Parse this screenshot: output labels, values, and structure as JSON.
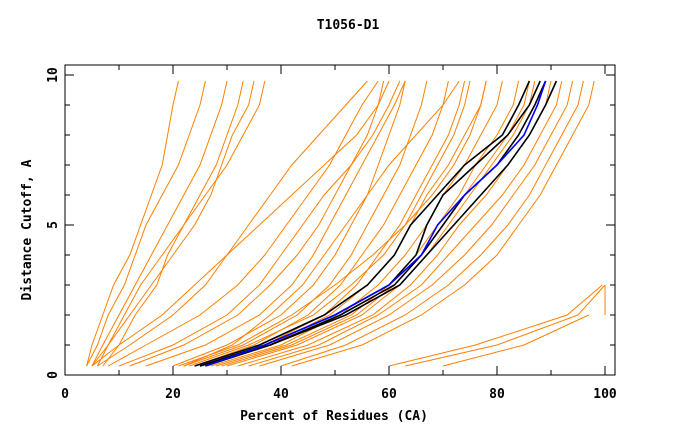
{
  "chart_data": {
    "type": "line",
    "title": "T1056-D1",
    "xlabel": "Percent of Residues (CA)",
    "ylabel": "Distance Cutoff, A",
    "xlim": [
      0,
      101.8
    ],
    "ylim": [
      0,
      10.3
    ],
    "x_ticks": [
      "0",
      "20",
      "40",
      "60",
      "80",
      "100"
    ],
    "y_ticks": [
      "0",
      "5",
      "10"
    ],
    "grid": false,
    "colors": {
      "models": "#ff8000",
      "highlight": "#000000",
      "reference": "#0000ff"
    },
    "y_levels": [
      0.3,
      1,
      2,
      3,
      4,
      5,
      6,
      7,
      8,
      9,
      9.8
    ],
    "model_curves": [
      [
        4,
        6,
        8,
        11,
        13,
        15,
        18,
        21,
        23,
        25,
        26
      ],
      [
        5,
        7,
        10,
        13,
        16,
        19,
        22,
        25,
        27,
        29,
        30
      ],
      [
        6,
        8,
        12,
        16,
        20,
        24,
        27,
        29,
        31,
        34,
        35
      ],
      [
        4,
        5,
        7,
        9,
        12,
        14,
        16,
        18,
        19,
        20,
        21
      ],
      [
        7,
        10,
        13,
        17,
        19,
        22,
        25,
        28,
        30,
        32,
        33
      ],
      [
        5,
        8,
        11,
        14,
        18,
        22,
        26,
        30,
        33,
        36,
        37
      ],
      [
        6,
        12,
        20,
        26,
        30,
        34,
        38,
        42,
        47,
        52,
        56
      ],
      [
        8,
        15,
        25,
        32,
        37,
        41,
        45,
        49,
        52,
        55,
        58
      ],
      [
        10,
        20,
        30,
        36,
        40,
        44,
        48,
        53,
        57,
        60,
        62
      ],
      [
        5,
        10,
        18,
        24,
        30,
        36,
        42,
        48,
        54,
        58,
        60
      ],
      [
        12,
        22,
        32,
        38,
        43,
        47,
        50,
        53,
        56,
        58,
        59
      ],
      [
        15,
        26,
        36,
        42,
        46,
        49,
        52,
        55,
        58,
        61,
        63
      ],
      [
        20,
        30,
        40,
        46,
        50,
        53,
        56,
        58,
        60,
        62,
        63
      ],
      [
        22,
        33,
        43,
        49,
        53,
        56,
        59,
        62,
        64,
        66,
        67
      ],
      [
        24,
        35,
        45,
        51,
        55,
        59,
        62,
        65,
        68,
        70,
        71
      ],
      [
        25,
        37,
        48,
        54,
        58,
        62,
        65,
        68,
        71,
        73,
        74
      ],
      [
        26,
        38,
        49,
        56,
        61,
        64,
        67,
        71,
        74,
        77,
        78
      ],
      [
        27,
        40,
        51,
        58,
        63,
        67,
        70,
        74,
        77,
        80,
        81
      ],
      [
        28,
        41,
        53,
        60,
        65,
        69,
        73,
        76,
        80,
        83,
        84
      ],
      [
        30,
        43,
        55,
        62,
        67,
        71,
        75,
        79,
        83,
        86,
        87
      ],
      [
        32,
        45,
        57,
        64,
        69,
        73,
        78,
        82,
        86,
        89,
        90
      ],
      [
        34,
        47,
        58,
        66,
        71,
        76,
        81,
        85,
        88,
        91,
        92
      ],
      [
        36,
        49,
        60,
        68,
        74,
        79,
        83,
        87,
        90,
        93,
        94
      ],
      [
        40,
        52,
        63,
        71,
        77,
        82,
        86,
        89,
        92,
        95,
        96
      ],
      [
        42,
        55,
        66,
        74,
        80,
        84,
        88,
        91,
        94,
        97,
        98
      ],
      [
        22,
        31,
        38,
        44,
        48,
        52,
        56,
        60,
        65,
        70,
        73
      ],
      [
        21,
        32,
        42,
        50,
        57,
        63,
        68,
        72,
        75,
        77,
        78
      ],
      [
        23,
        34,
        46,
        53,
        59,
        63,
        66,
        69,
        72,
        74,
        75
      ],
      [
        29,
        42,
        54,
        61,
        66,
        70,
        74,
        78,
        82,
        85,
        86
      ],
      [
        60,
        76,
        93,
        99.5,
        null,
        null,
        null,
        null,
        null,
        null,
        null
      ],
      [
        63,
        80,
        95,
        100,
        null,
        null,
        null,
        null,
        null,
        null,
        null
      ],
      [
        70,
        85,
        97,
        null,
        null,
        null,
        null,
        null,
        null,
        null,
        null
      ],
      [
        null,
        null,
        100,
        100,
        null,
        null,
        null,
        null,
        null,
        null,
        null
      ]
    ],
    "highlight_curves": [
      [
        24,
        36,
        48,
        56,
        61,
        64,
        69,
        74,
        81,
        84,
        86
      ],
      [
        25,
        37,
        50,
        60,
        65,
        67,
        70,
        76,
        82,
        86,
        88
      ],
      [
        26,
        38,
        51,
        61,
        66,
        70,
        74,
        80,
        84,
        87,
        89
      ],
      [
        25,
        38,
        52,
        62,
        67,
        72,
        77,
        82,
        86,
        89,
        91
      ]
    ],
    "reference_curve": [
      26,
      37,
      50,
      60,
      66,
      69,
      74,
      80,
      85,
      87.5,
      89
    ]
  }
}
